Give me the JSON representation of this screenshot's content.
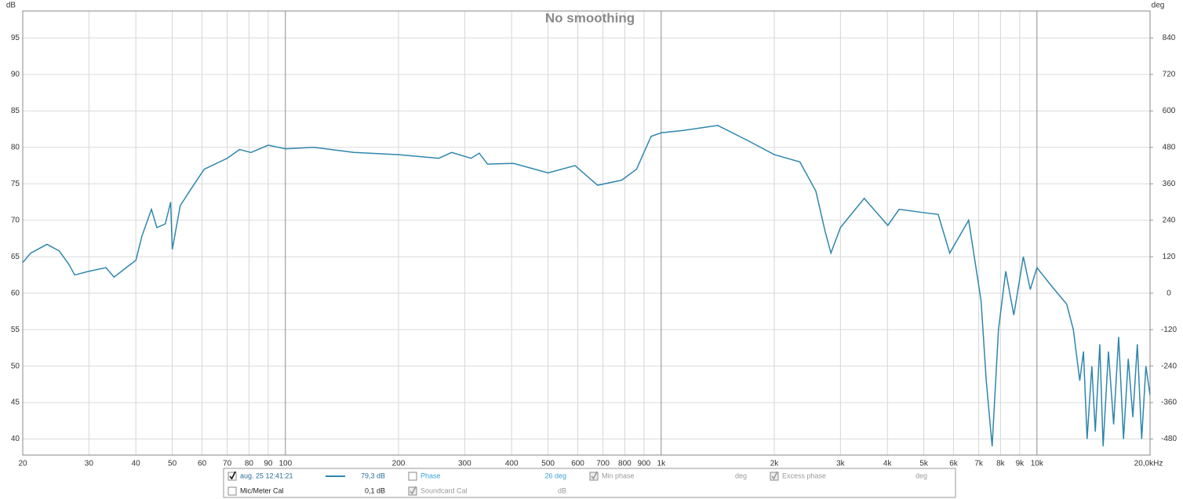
{
  "chart_data": {
    "type": "line",
    "title": "No smoothing",
    "y_label": "dB",
    "y2_label": "deg",
    "xscale": "log",
    "grid": true,
    "xlim": [
      20,
      20000
    ],
    "ylim": [
      37.8,
      98.7
    ],
    "y2lim": [
      -532.8,
      928.8
    ],
    "xticks": [
      20,
      30,
      40,
      50,
      60,
      70,
      80,
      90,
      100,
      200,
      300,
      400,
      500,
      600,
      700,
      800,
      900,
      {
        "value": 1000,
        "label": "1k"
      },
      {
        "value": 2000,
        "label": "2k"
      },
      {
        "value": 3000,
        "label": "3k"
      },
      {
        "value": 4000,
        "label": "4k"
      },
      {
        "value": 5000,
        "label": "5k"
      },
      {
        "value": 6000,
        "label": "6k"
      },
      {
        "value": 7000,
        "label": "7k"
      },
      {
        "value": 8000,
        "label": "8k"
      },
      {
        "value": 9000,
        "label": "9k"
      },
      {
        "value": 10000,
        "label": "10k"
      },
      {
        "value": 20000,
        "label": "20,0kHz"
      }
    ],
    "yticks": [
      40,
      45,
      50,
      55,
      60,
      65,
      70,
      75,
      80,
      85,
      90,
      95
    ],
    "y2ticks": [
      -480,
      -360,
      -240,
      -120,
      0,
      120,
      240,
      360,
      480,
      600,
      720,
      840
    ],
    "x": [
      20,
      21,
      23.2,
      25,
      26.5,
      27.5,
      30,
      33.3,
      35,
      37.7,
      40,
      41.5,
      44,
      45.5,
      47.9,
      49.5,
      50,
      52.5,
      55.6,
      60.8,
      70,
      75.5,
      81,
      90,
      100,
      119,
      152,
      200,
      256,
      277,
      312,
      328,
      345,
      405,
      500,
      590,
      677,
      785,
      860,
      940,
      1000,
      1140,
      1415,
      1690,
      2000,
      2340,
      2580,
      2730,
      2830,
      3000,
      3470,
      4010,
      4300,
      5070,
      5460,
      5860,
      6580,
      7100,
      7330,
      7600,
      7900,
      8260,
      8680,
      9200,
      9600,
      10000,
      10930,
      12000,
      12500,
      13000,
      13300,
      13600,
      14000,
      14300,
      14700,
      15000,
      15500,
      16000,
      16500,
      17000,
      17500,
      18000,
      18500,
      19000,
      19500,
      20000
    ],
    "series": [
      {
        "name": "aug. 25 12:41:21",
        "color": "#2f86ad",
        "values": [
          64.2,
          65.5,
          66.7,
          65.8,
          64,
          62.5,
          63,
          63.5,
          62.2,
          63.5,
          64.5,
          67.8,
          71.5,
          69,
          69.5,
          72.5,
          66,
          72,
          74,
          77,
          78.5,
          79.7,
          79.3,
          80.3,
          79.8,
          80,
          79.3,
          79,
          78.5,
          79.3,
          78.5,
          79.2,
          77.7,
          77.8,
          76.5,
          77.5,
          74.8,
          75.5,
          77,
          81.5,
          82,
          82.3,
          83,
          81,
          79,
          78,
          74,
          68.5,
          65.5,
          69,
          73,
          69.3,
          71.5,
          71,
          70.8,
          65.5,
          70,
          59,
          48,
          39,
          55,
          63,
          57,
          65,
          60.5,
          63.5,
          61,
          58.5,
          55,
          48,
          52,
          40,
          50,
          41,
          53,
          39,
          52,
          42,
          54,
          40,
          51,
          43,
          53,
          40,
          50,
          46
        ]
      }
    ]
  },
  "panel": {
    "rows": [
      [
        {
          "checked": true,
          "reading": "79,3 dB"
        },
        {
          "label": "Phase",
          "checked": false,
          "reading": "26 deg"
        },
        {
          "label": "Min phase",
          "checked": true,
          "reading": "deg"
        },
        {
          "label": "Excess phase",
          "checked": true,
          "reading": "deg"
        }
      ],
      [
        {
          "label": "Mic/Meter Cal",
          "checked": false,
          "reading": "0,1 dB"
        },
        {
          "label": "Soundcard Cal",
          "checked": true,
          "reading": "dB"
        }
      ]
    ]
  }
}
